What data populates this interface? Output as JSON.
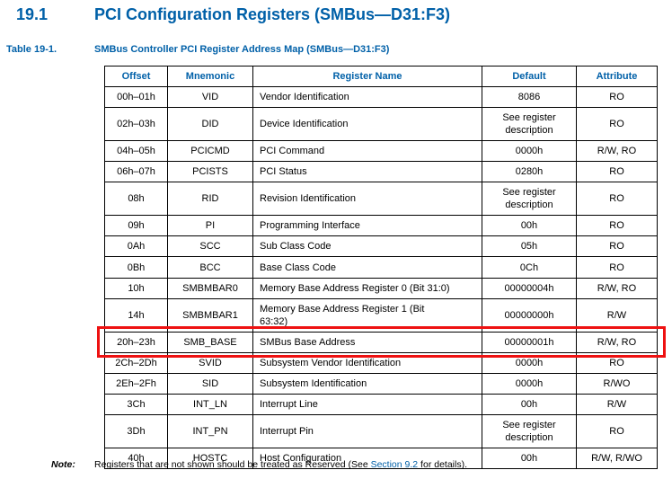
{
  "page": {
    "section_number": "19.1",
    "section_title": "PCI Configuration Registers (SMBus—D31:F3)",
    "caption_label": "Table 19-1.",
    "caption_text": "SMBus Controller PCI Register Address Map (SMBus—D31:F3)",
    "note_label": "Note:",
    "note_text_before_link": "Registers that are not shown should be treated as Reserved (See ",
    "note_link": "Section 9.2",
    "note_text_after_link": " for details)."
  },
  "colors": {
    "heading_blue": "#0060a8",
    "link_blue": "#0060a8",
    "highlight_red": "#ee1111",
    "table_border": "#000000"
  },
  "table": {
    "headers": [
      "Offset",
      "Mnemonic",
      "Register Name",
      "Default",
      "Attribute"
    ],
    "rows": [
      {
        "offset": "00h–01h",
        "mnemonic": "VID",
        "register_name": "Vendor Identification",
        "default": "8086",
        "attribute": "RO",
        "highlighted": false
      },
      {
        "offset": "02h–03h",
        "mnemonic": "DID",
        "register_name": "Device Identification",
        "default": "See register description",
        "attribute": "RO",
        "highlighted": false
      },
      {
        "offset": "04h–05h",
        "mnemonic": "PCICMD",
        "register_name": "PCI Command",
        "default": "0000h",
        "attribute": "R/W, RO",
        "highlighted": false
      },
      {
        "offset": "06h–07h",
        "mnemonic": "PCISTS",
        "register_name": "PCI Status",
        "default": "0280h",
        "attribute": "RO",
        "highlighted": false
      },
      {
        "offset": "08h",
        "mnemonic": "RID",
        "register_name": "Revision Identification",
        "default": "See register description",
        "attribute": "RO",
        "highlighted": false
      },
      {
        "offset": "09h",
        "mnemonic": "PI",
        "register_name": "Programming Interface",
        "default": "00h",
        "attribute": "RO",
        "highlighted": false
      },
      {
        "offset": "0Ah",
        "mnemonic": "SCC",
        "register_name": "Sub Class Code",
        "default": "05h",
        "attribute": "RO",
        "highlighted": false
      },
      {
        "offset": "0Bh",
        "mnemonic": "BCC",
        "register_name": "Base Class Code",
        "default": "0Ch",
        "attribute": "RO",
        "highlighted": false
      },
      {
        "offset": "10h",
        "mnemonic": "SMBMBAR0",
        "register_name": "Memory Base Address Register 0 (Bit 31:0)",
        "default": "00000004h",
        "attribute": "R/W, RO",
        "highlighted": false
      },
      {
        "offset": "14h",
        "mnemonic": "SMBMBAR1",
        "register_name": "Memory Base Address Register 1 (Bit 63:32)",
        "default": "00000000h",
        "attribute": "R/W",
        "highlighted": false
      },
      {
        "offset": "20h–23h",
        "mnemonic": "SMB_BASE",
        "register_name": "SMBus Base Address",
        "default": "00000001h",
        "attribute": "R/W, RO",
        "highlighted": true
      },
      {
        "offset": "2Ch–2Dh",
        "mnemonic": "SVID",
        "register_name": "Subsystem Vendor Identification",
        "default": "0000h",
        "attribute": "RO",
        "highlighted": false
      },
      {
        "offset": "2Eh–2Fh",
        "mnemonic": "SID",
        "register_name": "Subsystem Identification",
        "default": "0000h",
        "attribute": "R/WO",
        "highlighted": false
      },
      {
        "offset": "3Ch",
        "mnemonic": "INT_LN",
        "register_name": "Interrupt Line",
        "default": "00h",
        "attribute": "R/W",
        "highlighted": false
      },
      {
        "offset": "3Dh",
        "mnemonic": "INT_PN",
        "register_name": "Interrupt Pin",
        "default": "See register description",
        "attribute": "RO",
        "highlighted": false
      },
      {
        "offset": "40h",
        "mnemonic": "HOSTC",
        "register_name": "Host Configuration",
        "default": "00h",
        "attribute": "R/W, R/WO",
        "highlighted": false
      }
    ]
  }
}
